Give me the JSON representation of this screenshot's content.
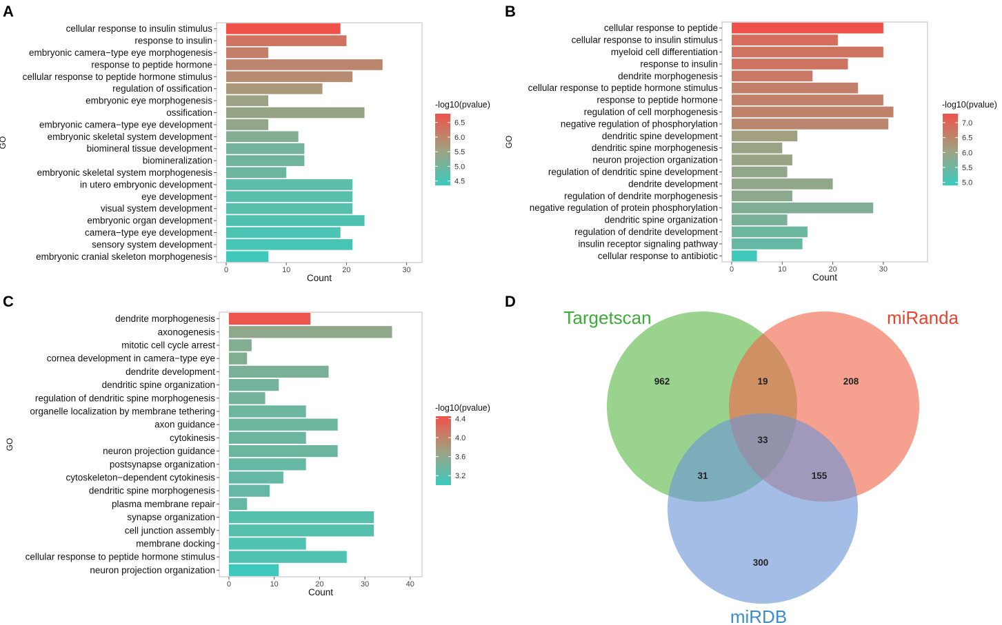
{
  "figure": {
    "panel_labels": [
      "A",
      "B",
      "C",
      "D"
    ]
  },
  "colors": {
    "high": "#F0524A",
    "mid": "#A1A080",
    "low": "#3ACBBE",
    "axis": "#555555",
    "venn_targetscan": "#5CB847",
    "venn_miranda": "#F0684A",
    "venn_mirdb": "#6C95D6",
    "label_targetscan": "#3DAA3A",
    "label_miranda": "#E8432F",
    "label_mirdb": "#3D8CC6"
  },
  "chart_data": [
    {
      "panel": "A",
      "type": "bar",
      "orientation": "horizontal",
      "xlabel": "Count",
      "ylabel": "GO",
      "xlim": [
        0,
        32
      ],
      "xticks": [
        0,
        10,
        20,
        30
      ],
      "categories": [
        "cellular response to insulin stimulus",
        "response to insulin",
        "embryonic camera−type eye morphogenesis",
        "response to peptide hormone",
        "cellular response to peptide hormone stimulus",
        "regulation of ossification",
        "embryonic eye morphogenesis",
        "ossification",
        "embryonic camera−type eye development",
        "embryonic skeletal system development",
        "biomineral tissue development",
        "biomineralization",
        "embryonic skeletal system morphogenesis",
        "in utero embryonic development",
        "eye development",
        "visual system development",
        "embryonic organ development",
        "camera−type eye development",
        "sensory system development",
        "embryonic cranial skeleton morphogenesis"
      ],
      "values": [
        19,
        20,
        7,
        26,
        21,
        16,
        7,
        23,
        7,
        12,
        13,
        13,
        10,
        21,
        21,
        21,
        23,
        19,
        21,
        7
      ],
      "color_values": [
        6.8,
        6.3,
        6.1,
        6.0,
        5.9,
        5.7,
        5.5,
        5.45,
        5.4,
        5.2,
        5.05,
        5.0,
        4.95,
        4.75,
        4.7,
        4.7,
        4.6,
        4.55,
        4.5,
        4.4
      ],
      "legend": {
        "title": "-log10(pvalue)",
        "ticks": [
          "6.5",
          "6.0",
          "5.5",
          "5.0",
          "4.5"
        ],
        "tick_values": [
          6.5,
          6.0,
          5.5,
          5.0,
          4.5
        ],
        "range": [
          4.35,
          6.8
        ]
      }
    },
    {
      "panel": "B",
      "type": "bar",
      "orientation": "horizontal",
      "xlabel": "Count",
      "ylabel": "GO",
      "xlim": [
        0,
        38
      ],
      "xticks": [
        0,
        10,
        20,
        30
      ],
      "categories": [
        "cellular response to peptide",
        "cellular response to insulin stimulus",
        "myeloid cell differentiation",
        "response to insulin",
        "dendrite morphogenesis",
        "cellular response to peptide hormone stimulus",
        "response to peptide hormone",
        "regulation of cell morphogenesis",
        "negative regulation of phosphorylation",
        "dendritic spine development",
        "dendritic spine morphogenesis",
        "neuron projection organization",
        "regulation of dendritic spine development",
        "dendrite development",
        "regulation of dendrite morphogenesis",
        "negative regulation of protein phosphorylation",
        "dendritic spine organization",
        "regulation of dendrite development",
        "insulin receptor signaling pathway",
        "cellular response to antibiotic"
      ],
      "values": [
        30,
        21,
        30,
        23,
        16,
        25,
        30,
        32,
        31,
        13,
        10,
        12,
        11,
        20,
        12,
        28,
        11,
        15,
        14,
        5
      ],
      "color_values": [
        7.3,
        6.9,
        6.8,
        6.8,
        6.7,
        6.6,
        6.6,
        6.55,
        6.5,
        6.1,
        6.0,
        6.0,
        5.9,
        5.9,
        5.85,
        5.7,
        5.65,
        5.5,
        5.4,
        4.95
      ],
      "legend": {
        "title": "-log10(pvalue)",
        "ticks": [
          "7.0",
          "6.5",
          "6.0",
          "5.5",
          "5.0"
        ],
        "tick_values": [
          7.0,
          6.5,
          6.0,
          5.5,
          5.0
        ],
        "range": [
          4.9,
          7.3
        ]
      }
    },
    {
      "panel": "C",
      "type": "bar",
      "orientation": "horizontal",
      "xlabel": "Count",
      "ylabel": "GO",
      "xlim": [
        0,
        42
      ],
      "xticks": [
        0,
        10,
        20,
        30,
        40
      ],
      "categories": [
        "dendrite morphogenesis",
        "axonogenesis",
        "mitotic cell cycle arrest",
        "cornea development in camera−type eye",
        "dendrite development",
        "dendritic spine organization",
        "regulation of dendritic spine morphogenesis",
        "organelle localization by membrane tethering",
        "axon guidance",
        "cytokinesis",
        "neuron projection guidance",
        "postsynapse organization",
        "cytoskeleton−dependent cytokinesis",
        "dendritic spine morphogenesis",
        "plasma membrane repair",
        "synapse organization",
        "cell junction assembly",
        "membrane docking",
        "cellular response to peptide hormone stimulus",
        "neuron projection organization"
      ],
      "values": [
        18,
        36,
        5,
        4,
        22,
        11,
        8,
        17,
        24,
        17,
        24,
        17,
        12,
        9,
        4,
        32,
        32,
        17,
        26,
        11
      ],
      "color_values": [
        4.4,
        3.6,
        3.5,
        3.5,
        3.45,
        3.4,
        3.4,
        3.35,
        3.35,
        3.35,
        3.35,
        3.3,
        3.3,
        3.3,
        3.3,
        3.2,
        3.2,
        3.15,
        3.15,
        3.02
      ],
      "legend": {
        "title": "-log10(pvalue)",
        "ticks": [
          "4.4",
          "4.0",
          "3.6",
          "3.2"
        ],
        "tick_values": [
          4.4,
          4.0,
          3.6,
          3.2
        ],
        "range": [
          3.0,
          4.45
        ]
      }
    },
    {
      "panel": "D",
      "type": "venn",
      "sets": [
        "Targetscan",
        "miRanda",
        "miRDB"
      ],
      "regions": {
        "targetscan_only": 962,
        "targetscan_miranda": 19,
        "miranda_only": 208,
        "all_three": 33,
        "targetscan_mirdb": 31,
        "miranda_mirdb": 155,
        "mirdb_only": 300
      }
    }
  ]
}
